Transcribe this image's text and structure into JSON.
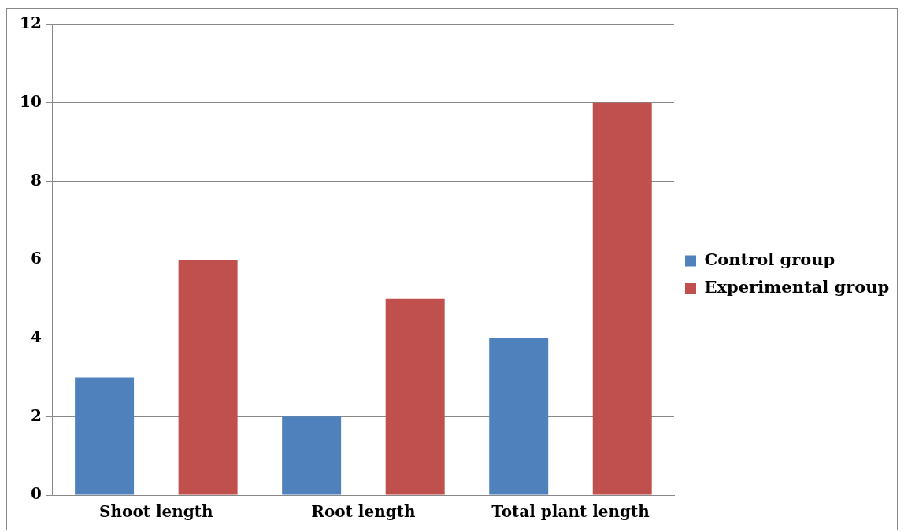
{
  "chart_data": {
    "type": "bar",
    "categories": [
      "Shoot length",
      "Root length",
      "Total plant length"
    ],
    "series": [
      {
        "name": "Control group",
        "color": "#4f81bd",
        "values": [
          3,
          2,
          4
        ]
      },
      {
        "name": "Experimental group",
        "color": "#c0504d",
        "values": [
          6,
          5,
          10
        ]
      }
    ],
    "ylim": [
      0,
      12
    ],
    "yticks": [
      0,
      2,
      4,
      6,
      8,
      10,
      12
    ],
    "grid": "y",
    "legend": "right"
  }
}
